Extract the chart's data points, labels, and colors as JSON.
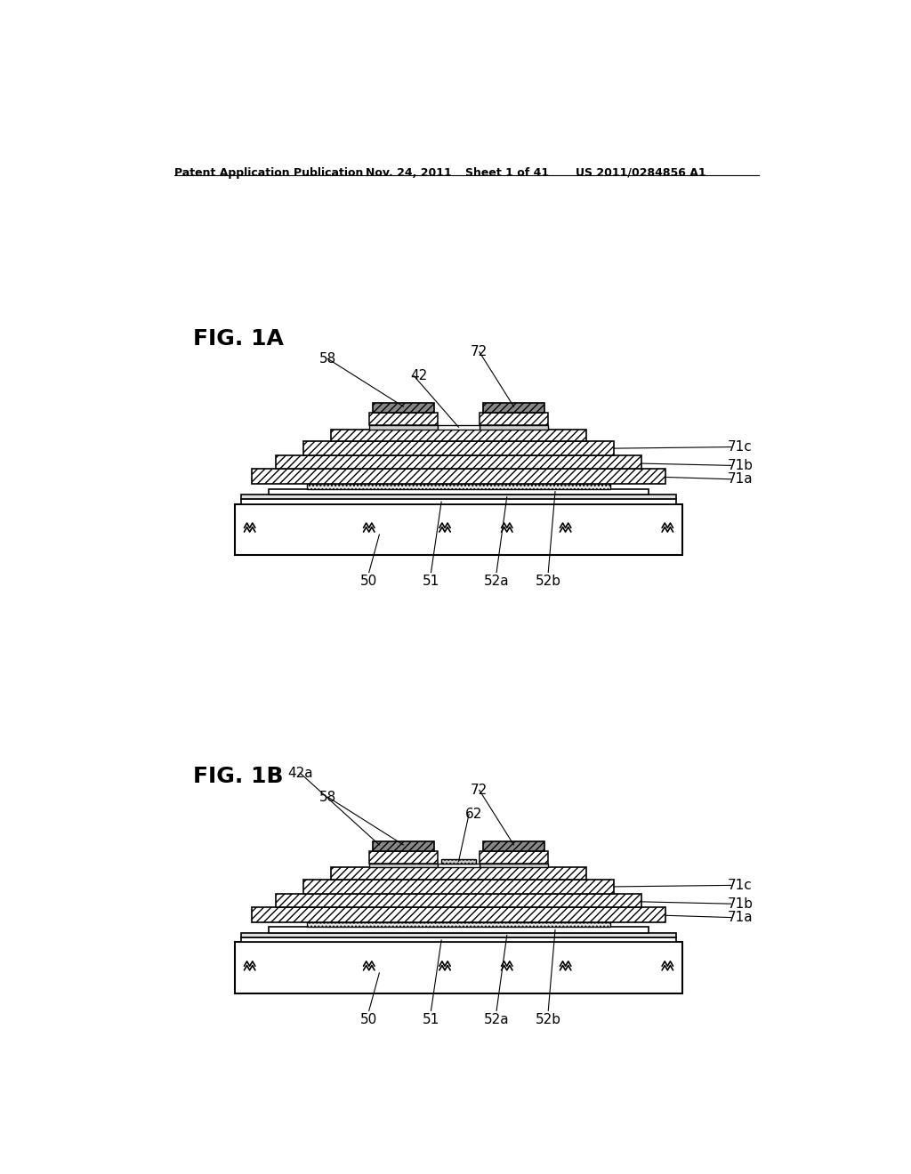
{
  "bg_color": "#ffffff",
  "header_text": "Patent Application Publication",
  "header_date": "Nov. 24, 2011",
  "header_sheet": "Sheet 1 of 41",
  "header_patent": "US 2011/0284856 A1",
  "fig1a_label": "FIG. 1A",
  "fig1b_label": "FIG. 1B",
  "line_color": "#000000",
  "label_fontsize": 11,
  "header_fontsize": 9,
  "fig_label_fontsize": 18
}
